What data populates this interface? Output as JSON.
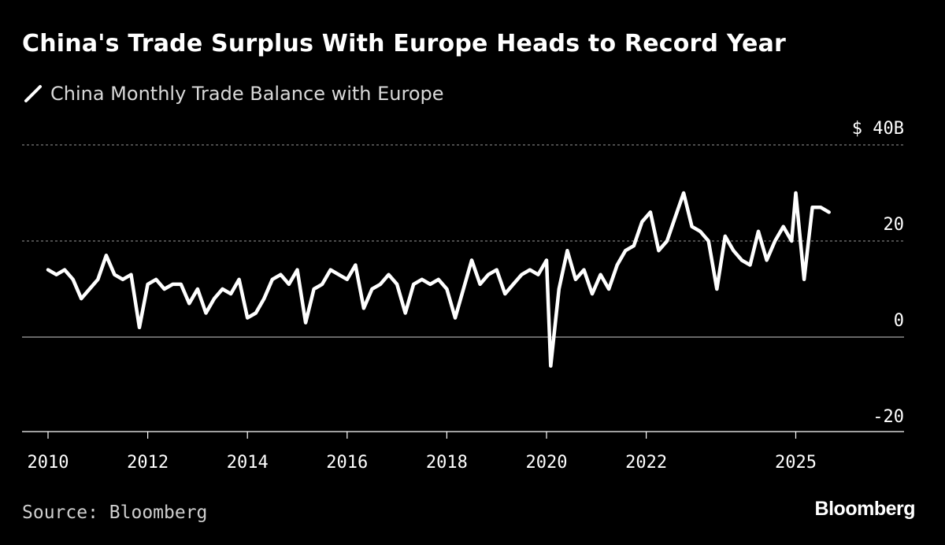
{
  "title": "China's Trade Surplus With Europe Heads to Record Year",
  "legend": {
    "label": "China Monthly Trade Balance with Europe"
  },
  "source": "Source: Bloomberg",
  "brand": "Bloomberg",
  "colors": {
    "background": "#000000",
    "line": "#ffffff",
    "grid": "#8c8c8c",
    "text": "#ffffff"
  },
  "chart_data": {
    "type": "line",
    "title": "China's Trade Surplus With Europe Heads to Record Year",
    "xlabel": "",
    "ylabel": "",
    "x_ticks": [
      "2010",
      "2012",
      "2014",
      "2016",
      "2018",
      "2020",
      "2022",
      "2025"
    ],
    "y_ticks": [
      "$ 40B",
      "20",
      "0",
      "-20"
    ],
    "y_tick_values": [
      40,
      20,
      0,
      -20
    ],
    "ylim": [
      -20,
      40
    ],
    "xlim": [
      "2010-01",
      "2025-12"
    ],
    "grid": "horizontal dotted",
    "legend_position": "top-left",
    "series": [
      {
        "name": "China Monthly Trade Balance with Europe",
        "x": [
          "2010-01",
          "2010-03",
          "2010-05",
          "2010-07",
          "2010-09",
          "2010-11",
          "2011-01",
          "2011-03",
          "2011-05",
          "2011-07",
          "2011-09",
          "2011-11",
          "2012-01",
          "2012-03",
          "2012-05",
          "2012-07",
          "2012-09",
          "2012-11",
          "2013-01",
          "2013-03",
          "2013-05",
          "2013-07",
          "2013-09",
          "2013-11",
          "2014-01",
          "2014-03",
          "2014-05",
          "2014-07",
          "2014-09",
          "2014-11",
          "2015-01",
          "2015-03",
          "2015-05",
          "2015-07",
          "2015-09",
          "2015-11",
          "2016-01",
          "2016-03",
          "2016-05",
          "2016-07",
          "2016-09",
          "2016-11",
          "2017-01",
          "2017-03",
          "2017-05",
          "2017-07",
          "2017-09",
          "2017-11",
          "2018-01",
          "2018-03",
          "2018-05",
          "2018-07",
          "2018-09",
          "2018-11",
          "2019-01",
          "2019-03",
          "2019-05",
          "2019-07",
          "2019-09",
          "2019-11",
          "2020-01",
          "2020-02",
          "2020-04",
          "2020-06",
          "2020-08",
          "2020-10",
          "2020-12",
          "2021-02",
          "2021-04",
          "2021-06",
          "2021-08",
          "2021-10",
          "2021-12",
          "2022-02",
          "2022-04",
          "2022-06",
          "2022-08",
          "2022-10",
          "2022-12",
          "2023-02",
          "2023-04",
          "2023-06",
          "2023-08",
          "2023-10",
          "2023-12",
          "2024-02",
          "2024-04",
          "2024-06",
          "2024-08",
          "2024-10",
          "2024-12",
          "2025-01",
          "2025-03",
          "2025-05",
          "2025-07",
          "2025-09"
        ],
        "values": [
          14,
          13,
          14,
          12,
          8,
          10,
          12,
          17,
          13,
          12,
          13,
          2,
          11,
          12,
          10,
          11,
          11,
          7,
          10,
          5,
          8,
          10,
          9,
          12,
          4,
          5,
          8,
          12,
          13,
          11,
          14,
          3,
          10,
          11,
          14,
          13,
          12,
          15,
          6,
          10,
          11,
          13,
          11,
          5,
          11,
          12,
          11,
          12,
          10,
          4,
          10,
          16,
          11,
          13,
          14,
          9,
          11,
          13,
          14,
          13,
          16,
          -6,
          10,
          18,
          12,
          14,
          9,
          13,
          10,
          15,
          18,
          19,
          24,
          26,
          18,
          20,
          25,
          30,
          23,
          22,
          20,
          10,
          21,
          18,
          16,
          15,
          22,
          16,
          20,
          23,
          20,
          30,
          12,
          27,
          27,
          26
        ]
      }
    ]
  }
}
